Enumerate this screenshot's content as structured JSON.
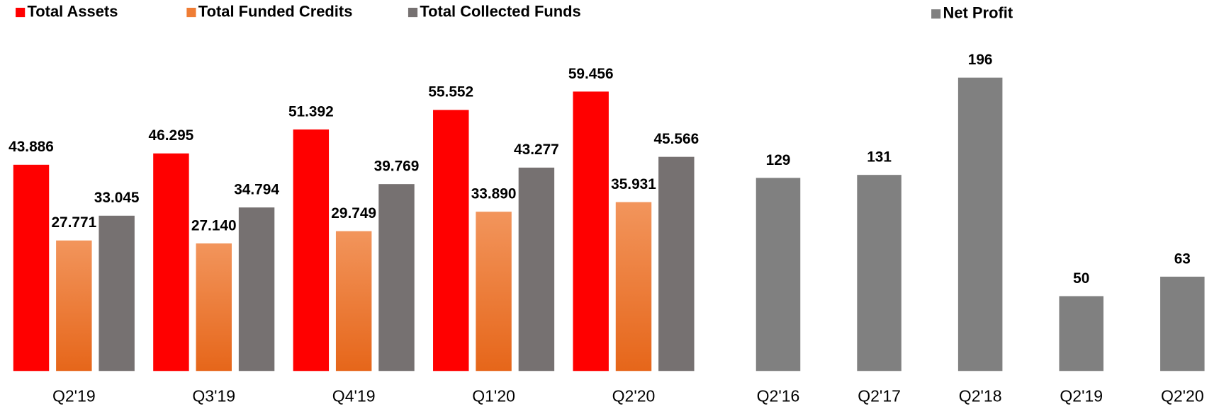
{
  "chart_data": [
    {
      "type": "bar",
      "categories": [
        "Q2'19",
        "Q3'19",
        "Q4'19",
        "Q1'20",
        "Q2'20"
      ],
      "series": [
        {
          "name": "Total Assets",
          "color": "#ff0000",
          "values": [
            43.886,
            46.295,
            51.392,
            55.552,
            59.456
          ],
          "value_labels": [
            "43.886",
            "46.295",
            "51.392",
            "55.552",
            "59.456"
          ]
        },
        {
          "name": "Total Funded Credits",
          "color": "#ef7d35",
          "values": [
            27.771,
            27.14,
            29.749,
            33.89,
            35.931
          ],
          "value_labels": [
            "27.771",
            "27.140",
            "29.749",
            "33.890",
            "35.931"
          ]
        },
        {
          "name": "Total Collected Funds",
          "color": "#767171",
          "values": [
            33.045,
            34.794,
            39.769,
            43.277,
            45.566
          ],
          "value_labels": [
            "33.045",
            "34.794",
            "39.769",
            "43.277",
            "45.566"
          ]
        }
      ],
      "legend": "top-left"
    },
    {
      "type": "bar",
      "categories": [
        "Q2'16",
        "Q2'17",
        "Q2'18",
        "Q2'19",
        "Q2'20"
      ],
      "series": [
        {
          "name": "Net Profit",
          "color": "#808080",
          "values": [
            129,
            131,
            196,
            50,
            63
          ]
        }
      ],
      "legend": "top"
    }
  ]
}
